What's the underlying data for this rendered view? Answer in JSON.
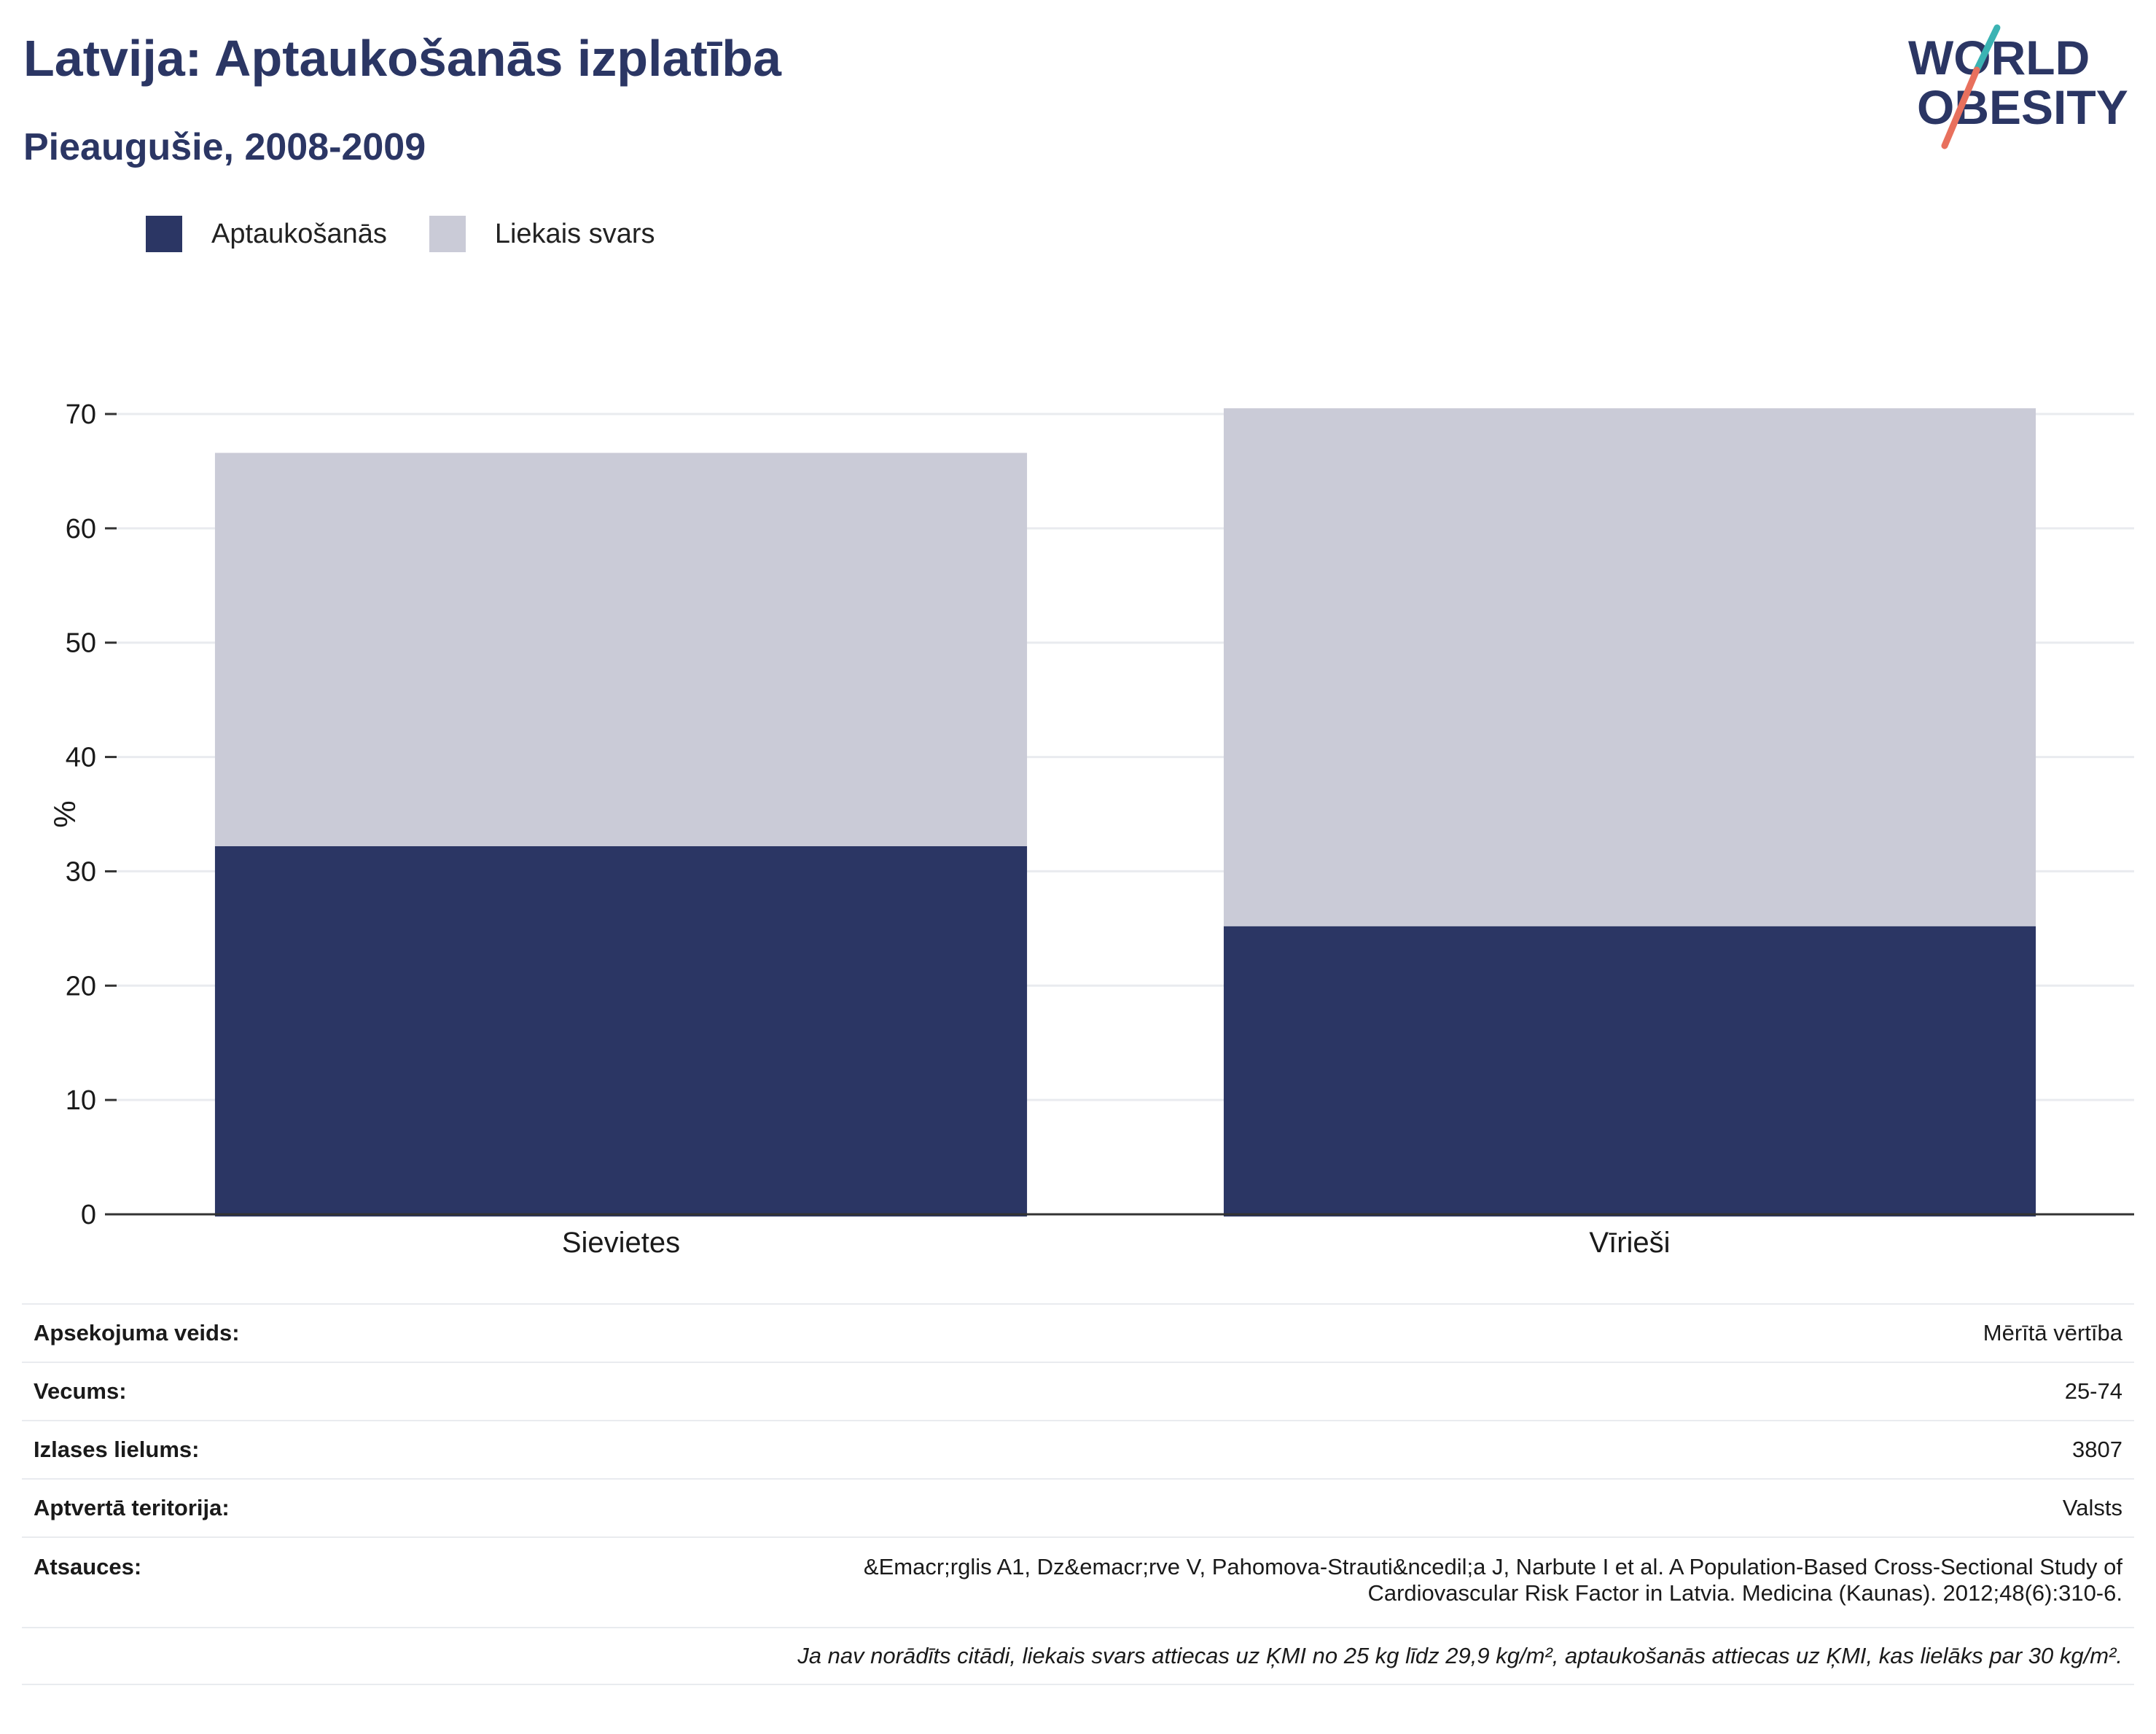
{
  "header": {
    "title": "Latvija: Aptaukošanās izplatība",
    "subtitle": "Pieaugušie, 2008-2009"
  },
  "logo": {
    "line1": "WORLD",
    "line2": "OBESITY"
  },
  "colors": {
    "obesity": "#2b3664",
    "overweight": "#cacbd7",
    "title": "#2b3664",
    "grid": "#e9ebef",
    "logo_teal": "#3bb3b3",
    "logo_coral": "#e8705d"
  },
  "chart_data": {
    "type": "bar",
    "stacked": true,
    "categories": [
      "Sievietes",
      "Vīrieši"
    ],
    "series": [
      {
        "name": "Aptaukošanās",
        "values": [
          32.2,
          25.2
        ]
      },
      {
        "name": "Liekais svars",
        "values": [
          34.4,
          45.3
        ]
      }
    ],
    "ylabel": "%",
    "ylim": [
      0,
      70
    ],
    "yticks": [
      0,
      10,
      20,
      30,
      40,
      50,
      60,
      70
    ],
    "grid": true,
    "legend": "top-left"
  },
  "info": {
    "survey_type": {
      "label": "Apsekojuma veids:",
      "value": "Mērītā vērtība"
    },
    "age": {
      "label": "Vecums:",
      "value": "25-74"
    },
    "sample_size": {
      "label": "Izlases lielums:",
      "value": "3807"
    },
    "coverage": {
      "label": "Aptvertā teritorija:",
      "value": "Valsts"
    },
    "references": {
      "label": "Atsauces:",
      "value_line1": "&Emacr;rglis A1, Dz&emacr;rve V, Pahomova-Strauti&ncedil;a J, Narbute I et al. A Population-Based Cross-Sectional Study of",
      "value_line2": "Cardiovascular Risk Factor in Latvia. Medicina (Kaunas). 2012;48(6):310-6."
    },
    "note": "Ja nav norādīts citādi, liekais svars attiecas uz ĶMI no 25 kg līdz 29,9 kg/m², aptaukošanās attiecas uz ĶMI, kas lielāks par 30 kg/m²."
  }
}
